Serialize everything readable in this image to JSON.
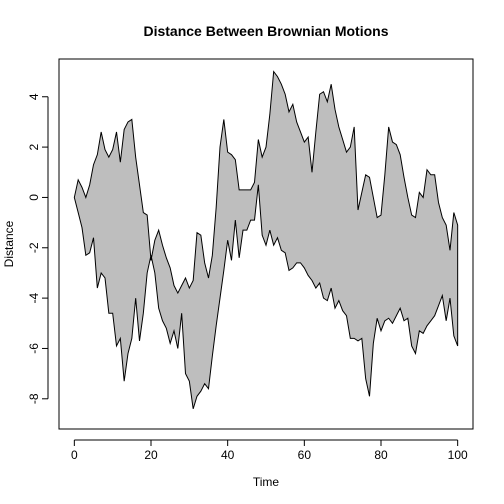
{
  "chart_data": {
    "type": "area",
    "title": "Distance Between Brownian Motions",
    "xlabel": "Time",
    "ylabel": "Distance",
    "xlim": [
      -4,
      104
    ],
    "ylim": [
      -9.2,
      5.5
    ],
    "x_ticks": [
      0,
      20,
      40,
      60,
      80,
      100
    ],
    "x_tick_labels": [
      "0",
      "20",
      "40",
      "60",
      "80",
      "100"
    ],
    "y_ticks": [
      -8,
      -6,
      -4,
      -2,
      0,
      2,
      4
    ],
    "y_tick_labels": [
      "-8",
      "-6",
      "-4",
      "-2",
      "0",
      "2",
      "4"
    ],
    "grid": false,
    "legend": "none",
    "fill_color": "#bebebe",
    "line_color": "#000000",
    "upper": {
      "x": [
        0,
        1,
        2,
        3,
        4,
        5,
        6,
        7,
        8,
        9,
        10,
        11,
        12,
        13,
        14,
        15,
        16,
        17,
        18,
        19,
        20,
        21,
        22,
        23,
        24,
        25,
        26,
        27,
        28,
        29,
        30,
        31,
        32,
        33,
        34,
        35,
        36,
        37,
        38,
        39,
        40,
        41,
        42,
        43,
        44,
        45,
        46,
        47,
        48,
        49,
        50,
        51,
        52,
        53,
        54,
        55,
        56,
        57,
        58,
        59,
        60,
        61,
        62,
        63,
        64,
        65,
        66,
        67,
        68,
        69,
        70,
        71,
        72,
        73,
        74,
        75,
        76,
        77,
        78,
        79,
        80,
        81,
        82,
        83,
        84,
        85,
        86,
        87,
        88,
        89,
        90,
        91,
        92,
        93,
        94,
        95,
        96,
        97,
        98,
        99,
        100
      ],
      "y": [
        0.0,
        0.7,
        0.4,
        0.0,
        0.5,
        1.3,
        1.7,
        2.6,
        1.9,
        1.6,
        1.9,
        2.6,
        1.4,
        2.7,
        3.0,
        3.1,
        1.6,
        0.5,
        -0.6,
        -0.7,
        -2.5,
        -1.7,
        -1.3,
        -1.9,
        -2.4,
        -2.8,
        -3.5,
        -3.8,
        -3.5,
        -3.2,
        -3.6,
        -3.3,
        -1.4,
        -1.5,
        -2.6,
        -3.2,
        -2.3,
        -0.4,
        2.0,
        3.1,
        1.8,
        1.7,
        1.5,
        0.3,
        0.3,
        0.3,
        0.3,
        0.6,
        2.3,
        1.6,
        2.0,
        3.3,
        5.0,
        4.8,
        4.5,
        4.1,
        3.4,
        3.7,
        3.0,
        2.6,
        2.2,
        2.4,
        1.0,
        2.6,
        4.1,
        4.2,
        3.8,
        4.5,
        3.5,
        2.8,
        2.3,
        1.8,
        2.0,
        2.8,
        -0.5,
        0.2,
        0.9,
        0.8,
        0.0,
        -0.8,
        -0.7,
        0.9,
        2.8,
        2.2,
        2.1,
        1.7,
        0.8,
        0.0,
        -0.7,
        -0.8,
        0.2,
        0.0,
        1.1,
        0.9,
        0.9,
        -0.2,
        -0.8,
        -1.1,
        -2.1,
        -0.6,
        -1.1
      ]
    },
    "lower": {
      "x": [
        0,
        1,
        2,
        3,
        4,
        5,
        6,
        7,
        8,
        9,
        10,
        11,
        12,
        13,
        14,
        15,
        16,
        17,
        18,
        19,
        20,
        21,
        22,
        23,
        24,
        25,
        26,
        27,
        28,
        29,
        30,
        31,
        32,
        33,
        34,
        35,
        36,
        37,
        38,
        39,
        40,
        41,
        42,
        43,
        44,
        45,
        46,
        47,
        48,
        49,
        50,
        51,
        52,
        53,
        54,
        55,
        56,
        57,
        58,
        59,
        60,
        61,
        62,
        63,
        64,
        65,
        66,
        67,
        68,
        69,
        70,
        71,
        72,
        73,
        74,
        75,
        76,
        77,
        78,
        79,
        80,
        81,
        82,
        83,
        84,
        85,
        86,
        87,
        88,
        89,
        90,
        91,
        92,
        93,
        94,
        95,
        96,
        97,
        98,
        99,
        100
      ],
      "y": [
        0.0,
        -0.6,
        -1.2,
        -2.3,
        -2.2,
        -1.6,
        -3.6,
        -3.0,
        -3.2,
        -4.6,
        -4.6,
        -5.9,
        -5.6,
        -7.3,
        -6.2,
        -5.6,
        -4.0,
        -5.7,
        -4.6,
        -3.0,
        -2.3,
        -3.0,
        -4.4,
        -4.9,
        -5.2,
        -5.8,
        -5.3,
        -6.0,
        -4.6,
        -7.0,
        -7.3,
        -8.4,
        -7.9,
        -7.7,
        -7.4,
        -7.6,
        -6.3,
        -5.1,
        -4.0,
        -2.9,
        -1.7,
        -2.5,
        -0.9,
        -2.4,
        -1.3,
        -1.3,
        -0.9,
        -0.9,
        0.5,
        -1.5,
        -1.9,
        -1.3,
        -1.9,
        -1.6,
        -2.1,
        -2.2,
        -2.9,
        -2.8,
        -2.6,
        -2.6,
        -2.8,
        -3.1,
        -3.3,
        -3.6,
        -3.4,
        -4.0,
        -4.1,
        -3.6,
        -4.4,
        -4.1,
        -4.5,
        -4.7,
        -5.6,
        -5.6,
        -5.7,
        -5.6,
        -7.2,
        -7.9,
        -5.8,
        -4.8,
        -5.3,
        -4.9,
        -4.8,
        -5.0,
        -4.7,
        -4.4,
        -4.9,
        -4.8,
        -5.9,
        -6.2,
        -5.3,
        -5.4,
        -5.1,
        -4.9,
        -4.7,
        -4.3,
        -3.9,
        -4.9,
        -4.0,
        -5.5,
        -5.9
      ]
    }
  }
}
